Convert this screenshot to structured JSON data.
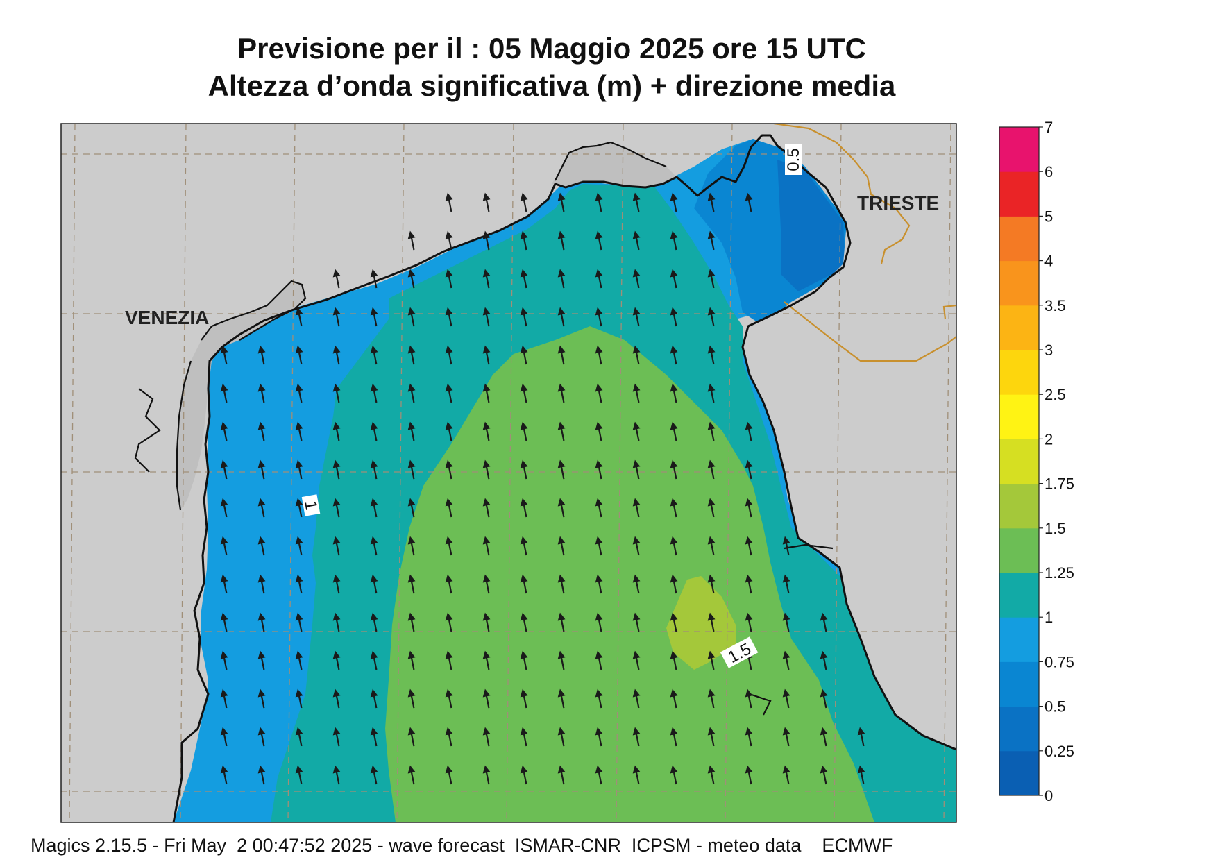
{
  "title": {
    "line1": "Previsione per il  :  05   Maggio  2025   ore 15 UTC",
    "line2": "Altezza d’onda significativa (m) + direzione media"
  },
  "footer": "Magics 2.15.5 - Fri May  2 00:47:52 2025 - wave forecast  ISMAR-CNR  ICPSM - meteo data    ECMWF",
  "cities": [
    "VENEZIA",
    "TRIESTE"
  ],
  "contour_labels": [
    "1",
    "1.5",
    "0.5"
  ],
  "colorbar": {
    "ticks": [
      "0",
      "0.25",
      "0.5",
      "0.75",
      "1",
      "1.25",
      "1.5",
      "1.75",
      "2",
      "2.5",
      "3",
      "3.5",
      "4",
      "5",
      "6",
      "7"
    ],
    "colors": [
      "#0a5fb3",
      "#0a72c4",
      "#0a86d2",
      "#149de0",
      "#12aaa6",
      "#6cbe55",
      "#a4c83a",
      "#d6df22",
      "#fff314",
      "#fdd60d",
      "#fcb414",
      "#f9941c",
      "#f47a24",
      "#ea2426",
      "#e8136d"
    ]
  },
  "colors": {
    "land": "#cccccc",
    "coastline": "#111111",
    "border": "#c8902e",
    "grid": "#a08f78",
    "band_05": "#0a72c4",
    "band_075": "#0a86d2",
    "band_1": "#149de0",
    "band_125": "#12aaa6",
    "band_15": "#6cbe55",
    "band_175": "#a4c83a",
    "arrow": "#1a1a1a"
  },
  "chart_data": {
    "type": "map",
    "variable": "Altezza d’onda significativa (m) + direzione media",
    "units": "m",
    "mean_direction_arrows": "pointing roughly north-northwest across the basin",
    "field_levels_shown": [
      "0.25",
      "0.5",
      "0.75",
      "1",
      "1.25",
      "1.5",
      "1.75"
    ],
    "maximum_region_level": "1.5-1.75"
  }
}
